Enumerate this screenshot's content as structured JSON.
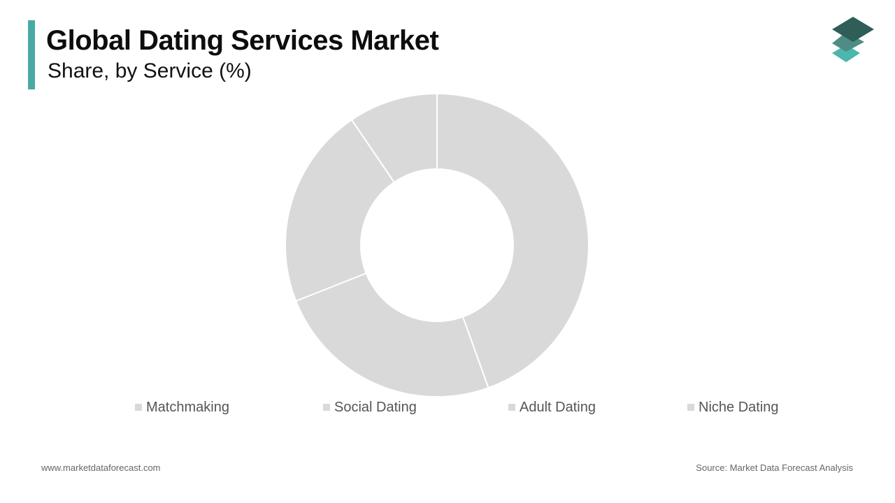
{
  "header": {
    "title": "Global Dating Services Market",
    "subtitle": "Share, by Service (%)"
  },
  "logo": {
    "icon": "layered-diamonds-logo-icon"
  },
  "colors": {
    "accent": "#4aa9a4",
    "slice": "#d9d9d9",
    "slice_border": "#ffffff",
    "logo_top": "#2f5e58",
    "logo_mid": "#4f8c86",
    "logo_bottom": "#4cb7ae"
  },
  "chart_data": {
    "type": "donut",
    "title": "Global Dating Services Market",
    "subtitle": "Share, by Service (%)",
    "categories": [
      "Matchmaking",
      "Social Dating",
      "Adult Dating",
      "Niche Dating"
    ],
    "values": [
      44.5,
      24.5,
      21.5,
      9.5
    ],
    "legend_position": "bottom",
    "data_labels": false
  },
  "footer": {
    "website": "www.marketdataforecast.com",
    "source": "Source: Market Data Forecast Analysis"
  }
}
